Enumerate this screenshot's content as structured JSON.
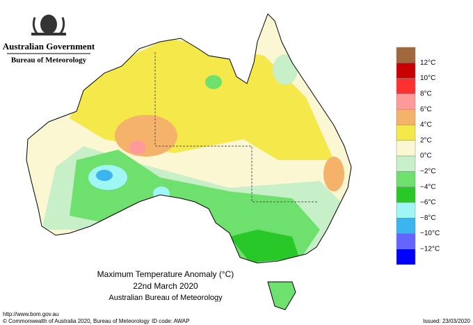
{
  "header": {
    "government": "Australian Government",
    "agency": "Bureau of Meteorology"
  },
  "map": {
    "title": "Maximum Temperature Anomaly (°C)",
    "date": "22nd March 2020",
    "source": "Australian Bureau of Meteorology"
  },
  "legend": {
    "colors": [
      "#a0693c",
      "#c80000",
      "#ff3030",
      "#ff9a9a",
      "#f5b26a",
      "#f5e84a",
      "#fbf7d2",
      "#c8f0c8",
      "#6ee06e",
      "#28c828",
      "#a0f5f5",
      "#3cb4f0",
      "#6464ff",
      "#0000ff"
    ],
    "labels": [
      "12°C",
      "10°C",
      "8°C",
      "6°C",
      "4°C",
      "2°C",
      "0°C",
      "−2°C",
      "−4°C",
      "−6°C",
      "−8°C",
      "−10°C",
      "−12°C"
    ]
  },
  "footer": {
    "url": "http://www.bom.gov.au",
    "copyright": "© Commonwealth of Australia 2020, Bureau of Meteorology",
    "id_code": "ID code: AWAP",
    "issued": "Issued: 23/03/2020"
  }
}
